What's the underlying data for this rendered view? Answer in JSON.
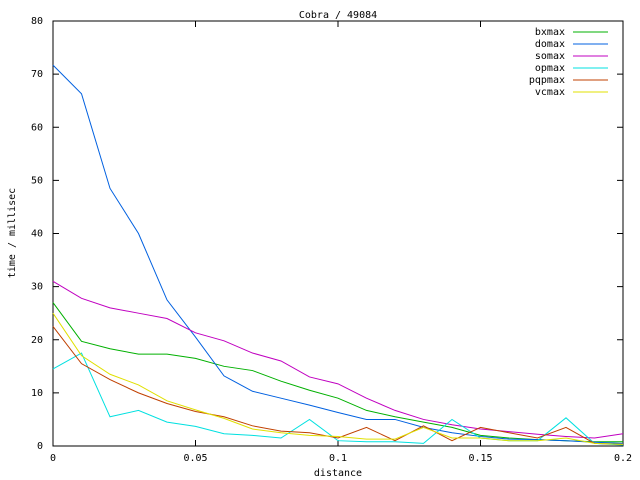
{
  "chart_data": {
    "type": "line",
    "title": "Cobra / 49084",
    "xlabel": "distance",
    "ylabel": "time / millisec",
    "x": [
      0,
      0.01,
      0.02,
      0.03,
      0.04,
      0.05,
      0.06,
      0.07,
      0.08,
      0.09,
      0.1,
      0.11,
      0.12,
      0.13,
      0.14,
      0.15,
      0.16,
      0.17,
      0.18,
      0.19,
      0.2
    ],
    "xlim": [
      0,
      0.2
    ],
    "xticks": [
      0,
      0.05,
      0.1,
      0.15,
      0.2
    ],
    "ylim": [
      0,
      80
    ],
    "yticks": [
      0,
      10,
      20,
      30,
      40,
      50,
      60,
      70,
      80
    ],
    "legend": "top-right",
    "series": [
      {
        "name": "bxmax",
        "color": "#00b000",
        "values": [
          27,
          19.7,
          18.3,
          17.3,
          17.3,
          16.5,
          15,
          14.2,
          12.2,
          10.5,
          9,
          6.7,
          5.5,
          4.5,
          3.5,
          2,
          1.5,
          1.2,
          1,
          0.8,
          0.8
        ]
      },
      {
        "name": "domax",
        "color": "#0060e0",
        "values": [
          71.7,
          66.3,
          48.5,
          40,
          27.5,
          20.5,
          13.2,
          10.3,
          9,
          7.7,
          6.3,
          5,
          5,
          3.5,
          2.5,
          1.8,
          1.3,
          1.2,
          1,
          0.7,
          0.5
        ]
      },
      {
        "name": "somax",
        "color": "#c000c0",
        "values": [
          31,
          27.8,
          26,
          25,
          24,
          21.3,
          19.8,
          17.5,
          16,
          13,
          11.7,
          9,
          6.7,
          5,
          4,
          3.2,
          2.7,
          2.2,
          1.8,
          1.5,
          2.3
        ]
      },
      {
        "name": "opmax",
        "color": "#00e0e0",
        "values": [
          14.5,
          17.5,
          5.5,
          6.7,
          4.5,
          3.7,
          2.3,
          2,
          1.5,
          5,
          1,
          0.8,
          0.8,
          0.5,
          5,
          1.5,
          1,
          1,
          5.3,
          0.5,
          0.2
        ]
      },
      {
        "name": "pqpmax",
        "color": "#c04000",
        "values": [
          22.5,
          15.5,
          12.5,
          10,
          8,
          6.5,
          5.5,
          3.8,
          2.8,
          2.5,
          1.5,
          3.5,
          1,
          3.8,
          1,
          3.5,
          2.5,
          1.5,
          3.5,
          0.5,
          0.3
        ]
      },
      {
        "name": "vcmax",
        "color": "#e0e000",
        "values": [
          25,
          17,
          13.5,
          11.5,
          8.5,
          6.8,
          5.2,
          3.2,
          2.5,
          2,
          1.8,
          1.3,
          1.3,
          3.5,
          1.5,
          1.5,
          1,
          1,
          1.5,
          0.5,
          0.3
        ]
      }
    ]
  }
}
